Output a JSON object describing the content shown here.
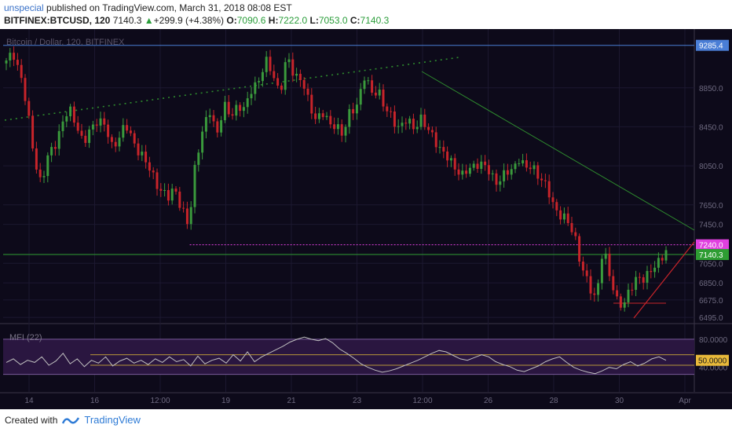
{
  "header": {
    "author": "unspecial",
    "published_text": " published on TradingView.com, March 31, 2018 08:08 EST",
    "symbol": "BITFINEX:BTCUSD, 120",
    "last": "7140.3",
    "change_arrow": "▲",
    "change": "+299.9 (+4.38%)",
    "o_label": "O:",
    "o_val": "7090.6",
    "h_label": "H:",
    "h_val": "7222.0",
    "l_label": "L:",
    "l_val": "7053.0",
    "c_label": "C:",
    "c_val": "7140.3"
  },
  "chart_watermark": "Bitcoin / Dollar, 120, BITFINEX",
  "indicator_label": "MFI (22)",
  "footer": {
    "created_with": "Created with",
    "brand": "TradingView"
  },
  "colors": {
    "background": "#0d0a1a",
    "up": "#3a9a3c",
    "down": "#c8242a",
    "trend_green": "#2e8b2e",
    "magenta": "#e040e0",
    "price_tag_green": "#2e9d33",
    "blue_line": "#4a7ed6",
    "mfi_band": "#2a1640",
    "mfi_line": "#bfbfbf"
  },
  "chart_data": [
    {
      "type": "candlestick",
      "title": "Bitcoin / Dollar, 120, BITFINEX",
      "x_ticks": [
        "14",
        "16",
        "12:00",
        "19",
        "21",
        "23",
        "12:00",
        "26",
        "28",
        "30",
        "Apr"
      ],
      "y_ticks": [
        8850.0,
        8450.0,
        8050.0,
        7650.0,
        7450.0,
        7050.0,
        6850.0,
        6675.0,
        6495.0
      ],
      "y_tick_labels": [
        "8850.0",
        "8450.0",
        "8050.0",
        "7650.0",
        "7450.0",
        "7050.0",
        "6850.0",
        "6675.0",
        "6495.0"
      ],
      "ylim": [
        6440,
        9420
      ],
      "grid": true,
      "price_tags": [
        {
          "value": 9285.4,
          "label": "9285.4",
          "color": "#4a7ed6"
        },
        {
          "value": 7240.0,
          "label": "7240.0",
          "color": "#e040e0"
        },
        {
          "value": 7140.3,
          "label": "7140.3",
          "color": "#2e9d33"
        }
      ],
      "horizontal_levels": [
        {
          "value": 9285.4,
          "style": "solid",
          "color": "#4a7ed6"
        },
        {
          "value": 7240.0,
          "style": "dotted",
          "color": "#e040e0",
          "from_x_fraction": 0.27
        },
        {
          "value": 7140.3,
          "style": "solid",
          "color": "#2e9d33"
        }
      ],
      "anchor_path": [
        9100,
        9220,
        9000,
        8600,
        8150,
        7850,
        8150,
        8300,
        8480,
        8620,
        8500,
        8250,
        8420,
        8550,
        8450,
        8250,
        8350,
        8450,
        8320,
        8200,
        8050,
        7950,
        7800,
        7700,
        7850,
        7600,
        7400,
        8150,
        8400,
        8600,
        8400,
        8650,
        8550,
        8700,
        8600,
        8850,
        8950,
        9100,
        9000,
        8800,
        9150,
        9000,
        8950,
        8700,
        8550,
        8600,
        8450,
        8500,
        8350,
        8600,
        8700,
        8950,
        8800,
        8850,
        8600,
        8550,
        8450,
        8500,
        8450,
        8550,
        8400,
        8350,
        8200,
        8100,
        8050,
        7950,
        8000,
        8100,
        8050,
        7950,
        7900,
        7950,
        8000,
        8150,
        8000,
        8050,
        7950,
        7800,
        7650,
        7550,
        7450,
        7350,
        7000,
        6800,
        6700,
        7200,
        6900,
        6700,
        6600,
        6800,
        6950,
        6850,
        7000,
        7100,
        7140
      ]
    },
    {
      "type": "line",
      "title": "MFI (22)",
      "y_ticks": [
        80.0,
        50.0,
        40.0
      ],
      "y_tick_labels": [
        "80.0000",
        "50.0000",
        "40.0000"
      ],
      "ylim": [
        5,
        100
      ],
      "band": [
        30,
        80
      ],
      "level_lines": [
        58,
        43
      ],
      "current_value_label": "50.0000",
      "values": [
        47,
        52,
        44,
        50,
        47,
        55,
        43,
        49,
        60,
        45,
        52,
        41,
        50,
        46,
        55,
        42,
        49,
        53,
        46,
        50,
        44,
        52,
        47,
        55,
        48,
        51,
        42,
        56,
        45,
        50,
        53,
        46,
        58,
        49,
        62,
        48,
        55,
        60,
        65,
        70,
        76,
        80,
        83,
        80,
        78,
        81,
        75,
        66,
        60,
        53,
        45,
        40,
        36,
        33,
        35,
        38,
        42,
        46,
        50,
        55,
        60,
        64,
        62,
        57,
        52,
        50,
        54,
        58,
        55,
        48,
        44,
        41,
        36,
        34,
        38,
        42,
        48,
        52,
        55,
        47,
        40,
        36,
        33,
        31,
        35,
        40,
        38,
        44,
        48,
        42,
        46,
        52,
        55,
        50
      ]
    }
  ]
}
